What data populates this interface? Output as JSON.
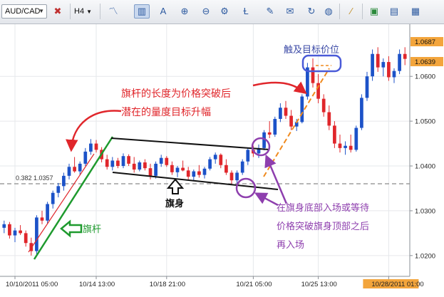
{
  "toolbar": {
    "symbol": "AUD/CAD",
    "timeframe": "H4",
    "buttons": [
      "line-icon",
      "crosshair-icon",
      "timeframe-dropdown",
      "indicators-icon",
      "candles-icon",
      "annotate-icon",
      "zoom-in-icon",
      "zoom-out-icon",
      "settings-icon",
      "fib-icon",
      "comment-icon",
      "refresh-icon",
      "globe-icon",
      "ruler-icon",
      "image-icon",
      "print-icon",
      "more-icon"
    ]
  },
  "annotations": {
    "top_target": "触及目标价位",
    "pole_label_line1": "旗杆的长度为价格突破后",
    "pole_label_line2": "潜在的量度目标升幅",
    "flag_body": "旗身",
    "flag_pole": "旗杆",
    "entry_line1": "在旗身底部入场或等待",
    "entry_line2": "价格突破旗身顶部之后",
    "entry_line3": "再入场",
    "fib_label": "0.382 1.0357"
  },
  "price_labels": {
    "top": "1.0687",
    "current": "1.0639"
  },
  "colors": {
    "up_candle": "#1c52c8",
    "down_candle": "#e0262b",
    "annotation_red": "#e0262b",
    "annotation_purple": "#8e3fae",
    "pole_green": "#1e9a2e",
    "orange_target": "#f08a1e",
    "price_box": "#f3a53c"
  },
  "chart_data": {
    "type": "candlestick",
    "y_ticks": [
      "1.0600",
      "1.0500",
      "1.0400",
      "1.0300",
      "1.0200"
    ],
    "x_ticks": [
      "10/10/2011 05:00",
      "10/14 13:00",
      "10/18 21:00",
      "10/21 05:00",
      "10/25 13:00",
      "10/28/2011 01:00"
    ],
    "ylim": [
      1.016,
      1.071
    ],
    "candles": [
      [
        1.0262,
        1.0278,
        1.025,
        1.027
      ],
      [
        1.027,
        1.0275,
        1.0238,
        1.0245
      ],
      [
        1.0245,
        1.0262,
        1.023,
        1.0256
      ],
      [
        1.0256,
        1.0268,
        1.0246,
        1.025
      ],
      [
        1.025,
        1.0256,
        1.022,
        1.0228
      ],
      [
        1.0228,
        1.024,
        1.02,
        1.021
      ],
      [
        1.021,
        1.029,
        1.02,
        1.0285
      ],
      [
        1.0285,
        1.03,
        1.027,
        1.0278
      ],
      [
        1.0278,
        1.032,
        1.0272,
        1.0315
      ],
      [
        1.0315,
        1.0345,
        1.0305,
        1.034
      ],
      [
        1.034,
        1.0362,
        1.033,
        1.0355
      ],
      [
        1.0355,
        1.0385,
        1.0345,
        1.0378
      ],
      [
        1.0378,
        1.0405,
        1.037,
        1.0398
      ],
      [
        1.0398,
        1.042,
        1.0385,
        1.0388
      ],
      [
        1.0388,
        1.041,
        1.038,
        1.0405
      ],
      [
        1.0405,
        1.044,
        1.04,
        1.0432
      ],
      [
        1.0432,
        1.046,
        1.0425,
        1.045
      ],
      [
        1.045,
        1.0458,
        1.043,
        1.0436
      ],
      [
        1.0436,
        1.0442,
        1.0408,
        1.0415
      ],
      [
        1.0415,
        1.0425,
        1.0392,
        1.0398
      ],
      [
        1.0398,
        1.042,
        1.039,
        1.0412
      ],
      [
        1.0412,
        1.0418,
        1.0395,
        1.04
      ],
      [
        1.04,
        1.0428,
        1.0395,
        1.0422
      ],
      [
        1.0422,
        1.0426,
        1.04,
        1.0405
      ],
      [
        1.0405,
        1.042,
        1.0385,
        1.0392
      ],
      [
        1.0392,
        1.0412,
        1.0388,
        1.0408
      ],
      [
        1.0408,
        1.0415,
        1.039,
        1.0395
      ],
      [
        1.0395,
        1.0405,
        1.037,
        1.0378
      ],
      [
        1.0378,
        1.041,
        1.0372,
        1.0405
      ],
      [
        1.0405,
        1.0425,
        1.0398,
        1.0418
      ],
      [
        1.0418,
        1.0422,
        1.0398,
        1.0402
      ],
      [
        1.0402,
        1.041,
        1.038,
        1.0386
      ],
      [
        1.0386,
        1.04,
        1.0375,
        1.0396
      ],
      [
        1.0396,
        1.0412,
        1.0388,
        1.039
      ],
      [
        1.039,
        1.0398,
        1.037,
        1.0376
      ],
      [
        1.0376,
        1.0392,
        1.0368,
        1.0388
      ],
      [
        1.0388,
        1.0402,
        1.0374,
        1.038
      ],
      [
        1.038,
        1.0398,
        1.0372,
        1.0394
      ],
      [
        1.0394,
        1.042,
        1.039,
        1.0415
      ],
      [
        1.0415,
        1.043,
        1.0405,
        1.0425
      ],
      [
        1.0425,
        1.0428,
        1.0395,
        1.0402
      ],
      [
        1.0402,
        1.0415,
        1.038,
        1.0385
      ],
      [
        1.0385,
        1.039,
        1.036,
        1.0368
      ],
      [
        1.0368,
        1.039,
        1.036,
        1.0385
      ],
      [
        1.0385,
        1.0415,
        1.038,
        1.041
      ],
      [
        1.041,
        1.044,
        1.0402,
        1.0436
      ],
      [
        1.0436,
        1.0445,
        1.042,
        1.0428
      ],
      [
        1.0428,
        1.0448,
        1.0418,
        1.044
      ],
      [
        1.044,
        1.048,
        1.0435,
        1.0475
      ],
      [
        1.0475,
        1.05,
        1.0462,
        1.047
      ],
      [
        1.047,
        1.051,
        1.0465,
        1.0505
      ],
      [
        1.0505,
        1.054,
        1.0498,
        1.053
      ],
      [
        1.053,
        1.0545,
        1.0505,
        1.0512
      ],
      [
        1.0512,
        1.0525,
        1.048,
        1.0488
      ],
      [
        1.0488,
        1.0505,
        1.0478,
        1.0498
      ],
      [
        1.0498,
        1.056,
        1.0495,
        1.0555
      ],
      [
        1.0555,
        1.063,
        1.0548,
        1.062
      ],
      [
        1.062,
        1.064,
        1.0575,
        1.0585
      ],
      [
        1.0585,
        1.0605,
        1.054,
        1.055
      ],
      [
        1.055,
        1.056,
        1.051,
        1.052
      ],
      [
        1.052,
        1.0535,
        1.048,
        1.049
      ],
      [
        1.049,
        1.05,
        1.044,
        1.045
      ],
      [
        1.045,
        1.047,
        1.043,
        1.044
      ],
      [
        1.044,
        1.0455,
        1.0425,
        1.0445
      ],
      [
        1.0445,
        1.047,
        1.043,
        1.0436
      ],
      [
        1.0436,
        1.049,
        1.0432,
        1.0485
      ],
      [
        1.0485,
        1.056,
        1.048,
        1.0552
      ],
      [
        1.0552,
        1.061,
        1.0545,
        1.06
      ],
      [
        1.06,
        1.066,
        1.059,
        1.065
      ],
      [
        1.065,
        1.0665,
        1.061,
        1.062
      ],
      [
        1.062,
        1.064,
        1.06,
        1.0632
      ],
      [
        1.0632,
        1.0645,
        1.059,
        1.0598
      ],
      [
        1.0598,
        1.0618,
        1.0585,
        1.0612
      ],
      [
        1.0612,
        1.066,
        1.0605,
        1.065
      ],
      [
        1.065,
        1.0665,
        1.0625,
        1.0639
      ]
    ]
  }
}
